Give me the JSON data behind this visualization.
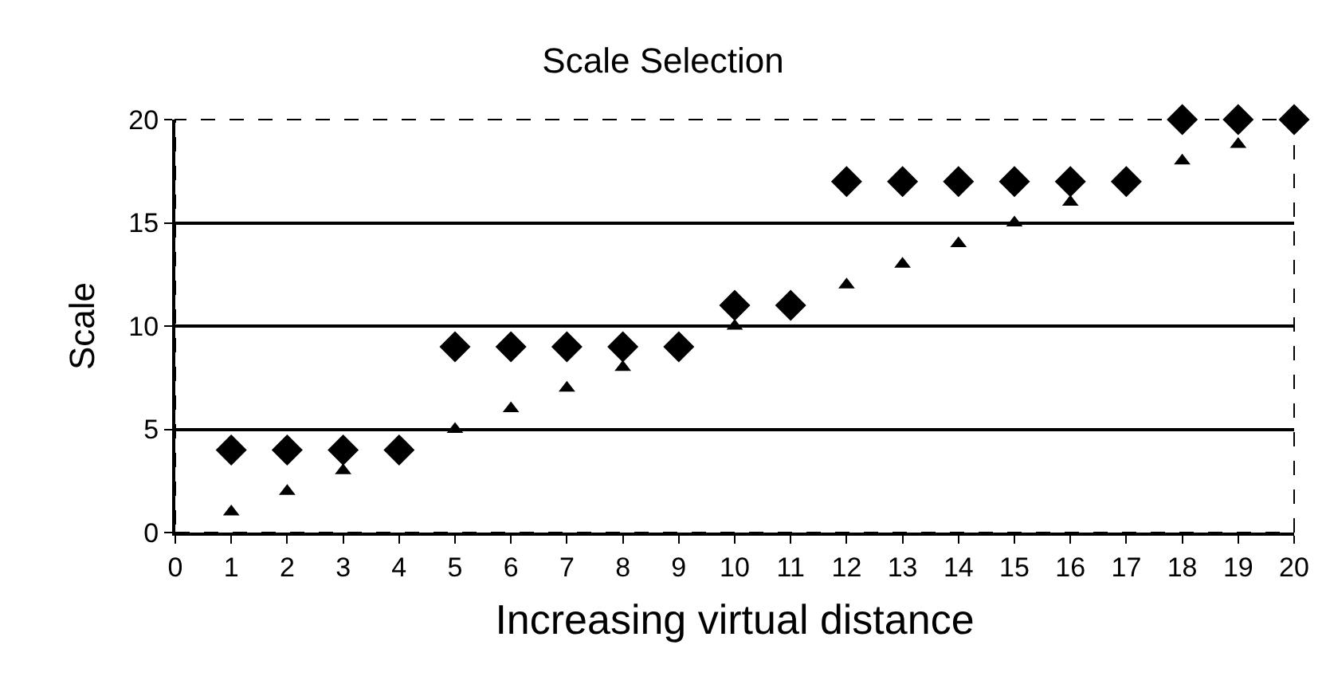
{
  "chart_data": {
    "type": "scatter",
    "title": "Scale Selection",
    "xlabel": "Increasing virtual distance",
    "ylabel": "Scale",
    "x": [
      1,
      2,
      3,
      4,
      5,
      6,
      7,
      8,
      9,
      10,
      11,
      12,
      13,
      14,
      15,
      16,
      17,
      18,
      19,
      20
    ],
    "series": [
      {
        "color": "#000000",
        "marker": "diamond",
        "values": [
          4,
          4,
          4,
          4,
          9,
          9,
          9,
          9,
          9,
          11,
          11,
          17,
          17,
          17,
          17,
          17,
          17,
          20,
          20,
          20
        ]
      },
      {
        "color": "#000000",
        "marker": "triangle",
        "values": [
          1,
          2,
          3,
          null,
          5,
          6,
          7,
          8,
          null,
          10,
          null,
          12,
          13,
          14,
          15,
          16,
          null,
          18,
          18.8,
          null
        ]
      }
    ],
    "xlim": [
      0,
      20
    ],
    "xticks": [
      0,
      1,
      2,
      3,
      4,
      5,
      6,
      7,
      8,
      9,
      10,
      11,
      12,
      13,
      14,
      15,
      16,
      17,
      18,
      19,
      20
    ],
    "ylim": [
      0,
      20
    ],
    "yticks": [
      0,
      5,
      10,
      15,
      20
    ],
    "grid": "y",
    "legend": false
  }
}
